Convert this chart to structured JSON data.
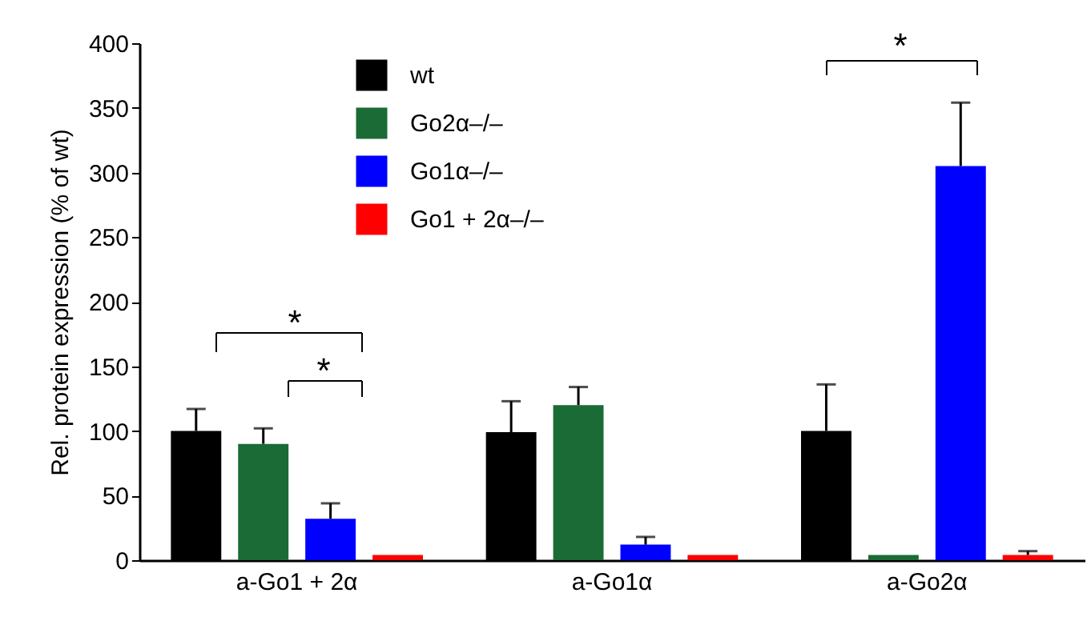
{
  "chart_data": {
    "type": "bar",
    "ylabel": "Rel. protein expression (% of wt)",
    "categories": [
      "a-Go1 + 2α",
      "a-Go1α",
      "a-Go2α"
    ],
    "series": [
      {
        "name": "wt",
        "color": "#000000",
        "values": [
          100,
          99,
          100
        ],
        "errors": [
          [
            100,
            117
          ],
          [
            99,
            123
          ],
          [
            100,
            136
          ]
        ]
      },
      {
        "name": "Go2α–/–",
        "color": "#1a6b35",
        "values": [
          90,
          120,
          4
        ],
        "errors": [
          [
            90,
            102
          ],
          [
            120,
            134
          ],
          null
        ]
      },
      {
        "name": "Go1α–/–",
        "color": "#0000ff",
        "values": [
          32,
          12,
          305
        ],
        "errors": [
          [
            32,
            44
          ],
          [
            12,
            18
          ],
          [
            305,
            354
          ]
        ]
      },
      {
        "name": "Go1 + 2α–/–",
        "color": "#ff0000",
        "values": [
          4,
          4,
          4
        ],
        "errors": [
          null,
          null,
          [
            4,
            7
          ]
        ]
      }
    ],
    "ylim": [
      0,
      400
    ],
    "yticks": [
      0,
      50,
      100,
      150,
      200,
      250,
      300,
      350,
      400
    ],
    "annotations": [
      "*",
      "*",
      "*"
    ],
    "legend": "top left"
  }
}
